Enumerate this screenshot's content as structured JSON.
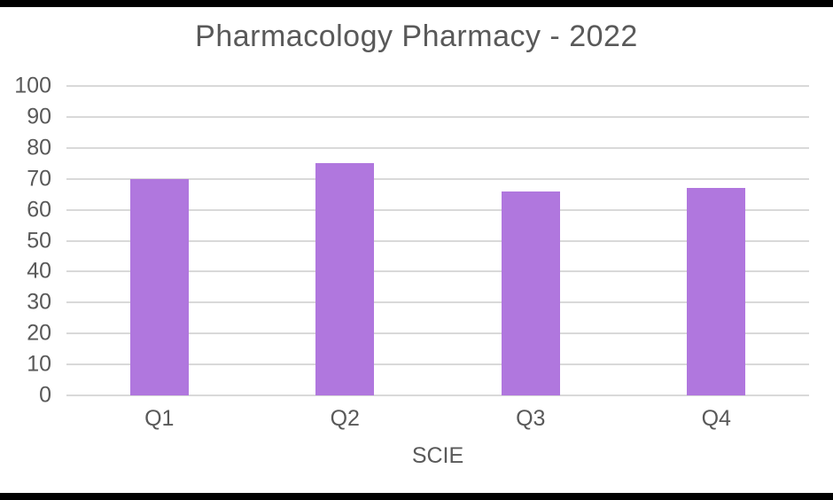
{
  "chart_data": {
    "type": "bar",
    "title": "Pharmacology Pharmacy - 2022",
    "categories": [
      "Q1",
      "Q2",
      "Q3",
      "Q4"
    ],
    "values": [
      70,
      75,
      66,
      67
    ],
    "xlabel": "SCIE",
    "ylabel": "",
    "ylim": [
      0,
      100
    ],
    "yticks": [
      100,
      90,
      80,
      70,
      60,
      50,
      40,
      30,
      20,
      10,
      0
    ],
    "grid": true,
    "legend": false,
    "colors": {
      "bar": "#b077de",
      "text": "#595959",
      "gridline": "#d9d9d9",
      "border_strip": "#000000"
    }
  }
}
